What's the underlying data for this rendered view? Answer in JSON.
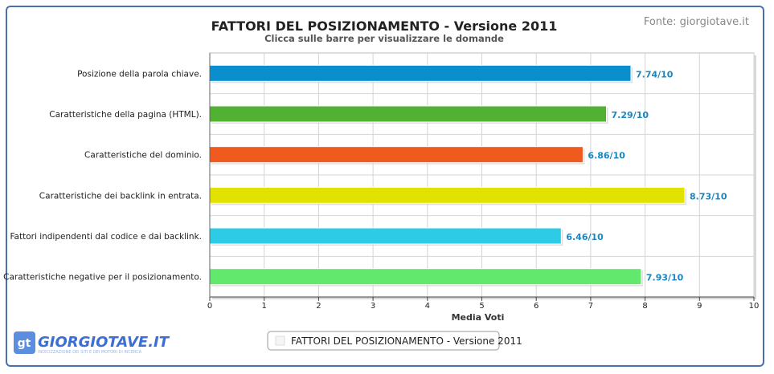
{
  "header": {
    "title": "FATTORI DEL POSIZIONAMENTO - Versione 2011",
    "subtitle": "Clicca sulle barre per visualizzare le domande",
    "source": "Fonte: giorgiotave.it"
  },
  "logo": {
    "badge": "gt",
    "name": "GIORGIOTAVE.IT",
    "tagline": "INDICIZZAZIONE DEI SITI E DEI MOTORI DI RICERCA"
  },
  "legend": {
    "label": "FATTORI DEL POSIZIONAMENTO - Versione 2011"
  },
  "chart_data": {
    "type": "bar",
    "orientation": "horizontal",
    "title": "FATTORI DEL POSIZIONAMENTO - Versione 2011",
    "subtitle": "Clicca sulle barre per visualizzare le domande",
    "xlabel": "Media Voti",
    "ylabel": "",
    "xlim": [
      0,
      10
    ],
    "xticks": [
      0,
      1,
      2,
      3,
      4,
      5,
      6,
      7,
      8,
      9,
      10
    ],
    "grid": true,
    "legend_position": "bottom-center",
    "categories": [
      "Posizione della parola chiave.",
      "Caratteristiche della pagina (HTML).",
      "Caratteristiche del dominio.",
      "Caratteristiche dei backlink in entrata.",
      "Fattori indipendenti dal codice e dai backlink.",
      "Caratteristiche negative per il posizionamento."
    ],
    "values": [
      7.74,
      7.29,
      6.86,
      8.73,
      6.46,
      7.93
    ],
    "data_labels": [
      "7.74/10",
      "7.29/10",
      "6.86/10",
      "8.73/10",
      "6.46/10",
      "7.93/10"
    ],
    "colors": [
      "#0a8fce",
      "#52b132",
      "#ef5a1e",
      "#e2e200",
      "#2ecbe6",
      "#63e86e"
    ],
    "label_color": "#1a87c0",
    "series": [
      {
        "name": "FATTORI DEL POSIZIONAMENTO - Versione 2011"
      }
    ]
  }
}
